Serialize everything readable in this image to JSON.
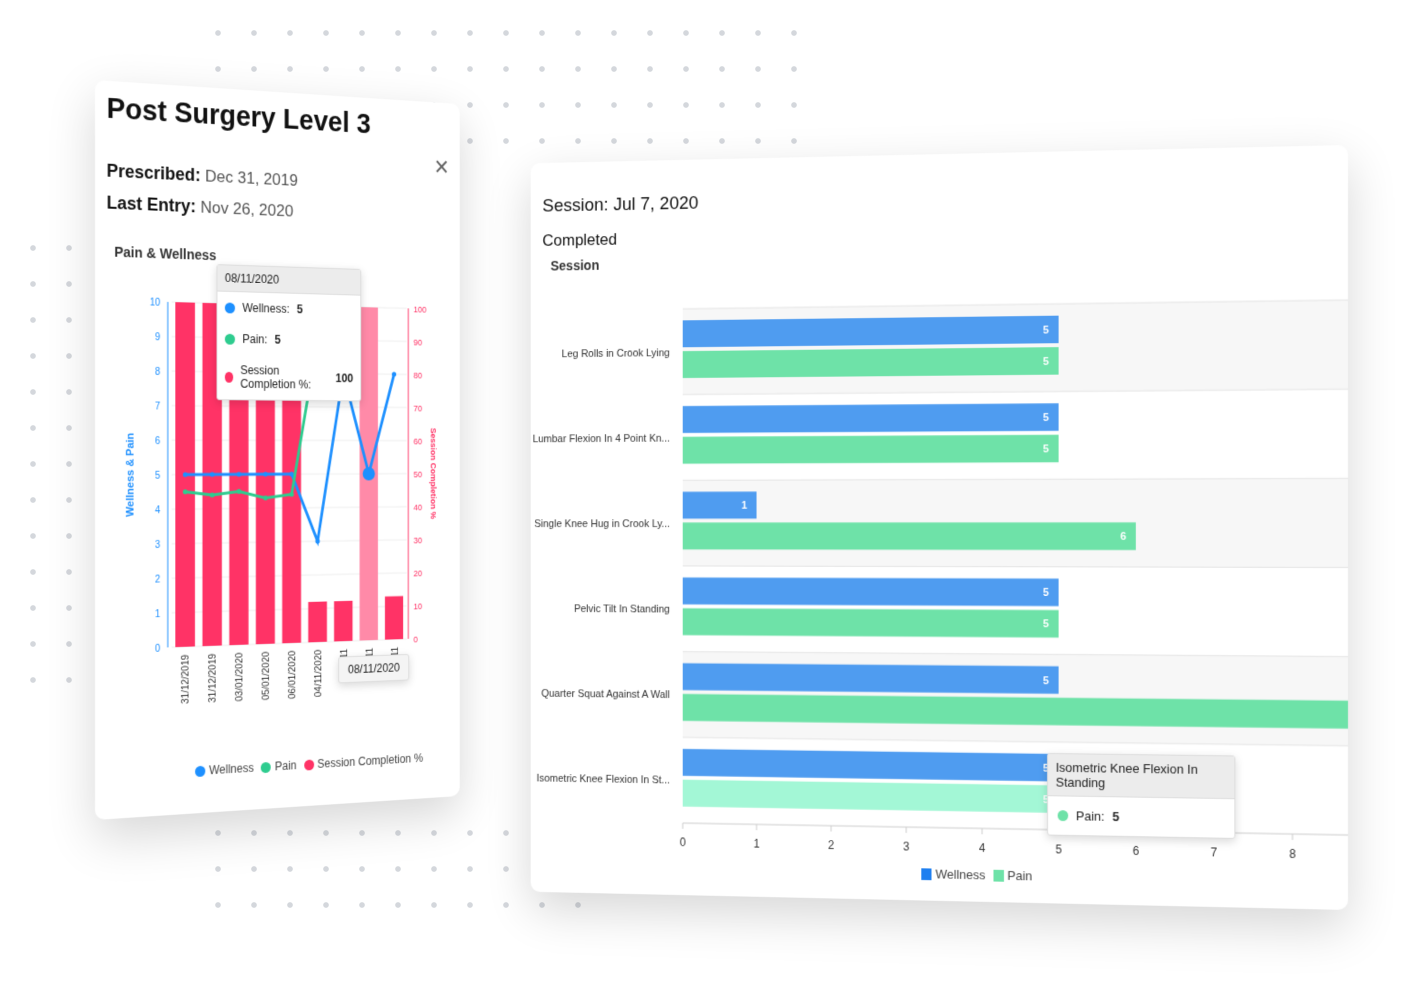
{
  "left_card": {
    "title": "Post Surgery Level 3",
    "prescribed_label": "Prescribed:",
    "prescribed_value": "Dec 31, 2019",
    "last_entry_label": "Last Entry:",
    "last_entry_value": "Nov 26, 2020",
    "chart_title": "Pain & Wellness",
    "tooltip": {
      "date": "08/11/2020",
      "wellness_label": "Wellness:",
      "wellness_value": "5",
      "pain_label": "Pain:",
      "pain_value": "5",
      "completion_label": "Session Completion %:",
      "completion_value": "100"
    },
    "axis_tooltip": "08/11/2020",
    "legend": [
      "Wellness",
      "Pain",
      "Session Completion %"
    ]
  },
  "right_card": {
    "session_title": "Session: Jul 7, 2020",
    "status": "Completed",
    "chart_title": "Session",
    "tooltip": {
      "title": "Isometric Knee Flexion In Standing",
      "label": "Pain:",
      "value": "5"
    },
    "legend": [
      "Wellness",
      "Pain"
    ]
  },
  "colors": {
    "wellness": "#1e90ff",
    "pain": "#2ecc8f",
    "completion": "#ff3366",
    "bar_wellness": "#4f9cf0",
    "bar_pain": "#6ee2a8"
  },
  "chart_data": [
    {
      "type": "bar+line",
      "title": "Pain & Wellness",
      "categories": [
        "31/12/2019",
        "31/12/2019",
        "03/01/2020",
        "05/01/2020",
        "06/01/2020",
        "04/11/2020",
        "08/11",
        "08/11",
        "09/11"
      ],
      "series": [
        {
          "name": "Session Completion %",
          "type": "bar",
          "axis": "right",
          "values": [
            100,
            100,
            98,
            98,
            98,
            12,
            12,
            100,
            13
          ]
        },
        {
          "name": "Wellness",
          "type": "line",
          "axis": "left",
          "values": [
            5,
            5,
            5,
            5,
            5,
            3,
            8,
            5,
            8
          ]
        },
        {
          "name": "Pain",
          "type": "line",
          "axis": "left",
          "values": [
            4.5,
            4.4,
            4.5,
            4.3,
            4.4,
            9,
            null,
            null,
            null
          ]
        }
      ],
      "ylabel": "Wellness & Pain",
      "ylim": [
        0,
        10
      ],
      "yticks": [
        "0",
        "1",
        "2",
        "3",
        "4",
        "5",
        "6",
        "7",
        "8",
        "9",
        "10"
      ],
      "y2label": "Session Completion %",
      "y2lim": [
        0,
        100
      ],
      "y2ticks": [
        "0",
        "10",
        "20",
        "30",
        "40",
        "50",
        "60",
        "70",
        "80",
        "90",
        "100"
      ],
      "highlight_index": 7
    },
    {
      "type": "bar",
      "orientation": "horizontal",
      "title": "Session",
      "categories": [
        "Leg Rolls in Crook Lying",
        "Lumbar Flexion In 4 Point Kn...",
        "Single Knee Hug in Crook Ly...",
        "Pelvic Tilt In Standing",
        "Quarter Squat Against A Wall",
        "Isometric Knee Flexion In St..."
      ],
      "series": [
        {
          "name": "Wellness",
          "values": [
            5,
            5,
            1,
            5,
            5,
            5
          ]
        },
        {
          "name": "Pain",
          "values": [
            5,
            5,
            6,
            5,
            9,
            5
          ]
        }
      ],
      "xlim": [
        0,
        8.7
      ],
      "xticks": [
        "0",
        "1",
        "2",
        "3",
        "4",
        "5",
        "6",
        "7",
        "8"
      ]
    }
  ]
}
